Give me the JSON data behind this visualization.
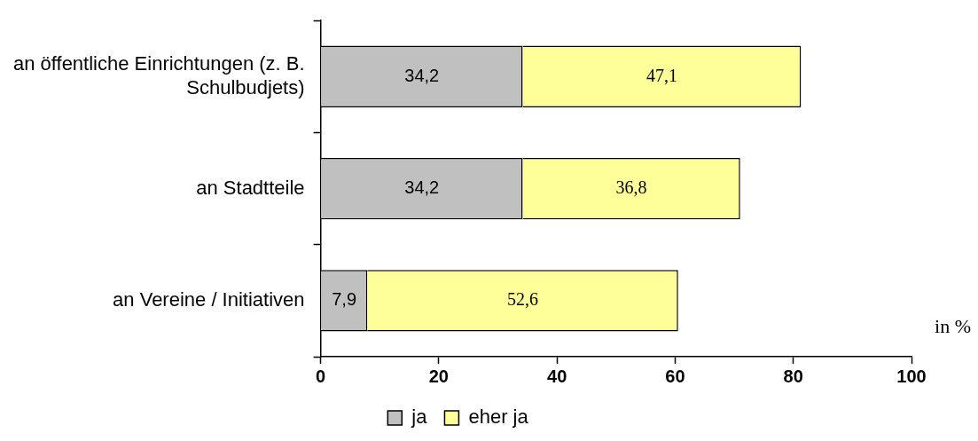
{
  "chart_data": {
    "type": "bar",
    "orientation": "horizontal",
    "stacked": true,
    "categories": [
      "an öffentliche Einrichtungen (z. B. Schulbudjets)",
      "an Stadtteile",
      "an Vereine / Initiativen"
    ],
    "series": [
      {
        "name": "ja",
        "color": "#c0c0c0",
        "values": [
          34.2,
          34.2,
          7.9
        ],
        "value_labels": [
          "34,2",
          "34,2",
          "7,9"
        ]
      },
      {
        "name": "eher ja",
        "color": "#ffff99",
        "values": [
          47.1,
          36.8,
          52.6
        ],
        "value_labels": [
          "47,1",
          "36,8",
          "52,6"
        ]
      }
    ],
    "xlim": [
      0,
      100
    ],
    "xticks": [
      0,
      20,
      40,
      60,
      80,
      100
    ],
    "grid": false,
    "legend": "bottom",
    "annotations": [
      "in %"
    ]
  }
}
